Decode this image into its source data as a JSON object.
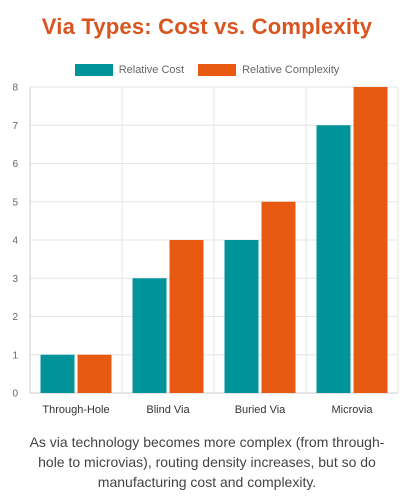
{
  "title": "Via Types: Cost vs. Complexity",
  "caption": "As via technology becomes more complex (from through-hole to microvias), routing density increases, but so do manufacturing cost and complexity.",
  "colors": {
    "title": "#d9541e",
    "cost": "#00949a",
    "complexity": "#e85a12",
    "grid": "#e6e6e6"
  },
  "chart_data": {
    "type": "bar",
    "categories": [
      "Through-Hole",
      "Blind Via",
      "Buried Via",
      "Microvia"
    ],
    "series": [
      {
        "name": "Relative Cost",
        "values": [
          1,
          3,
          4,
          7
        ]
      },
      {
        "name": "Relative Complexity",
        "values": [
          1,
          4,
          5,
          8
        ]
      }
    ],
    "title": "Via Types: Cost vs. Complexity",
    "xlabel": "",
    "ylabel": "",
    "ylim": [
      0,
      8
    ],
    "yticks": [
      0,
      1,
      2,
      3,
      4,
      5,
      6,
      7,
      8
    ],
    "grid": true,
    "legend": "top"
  }
}
